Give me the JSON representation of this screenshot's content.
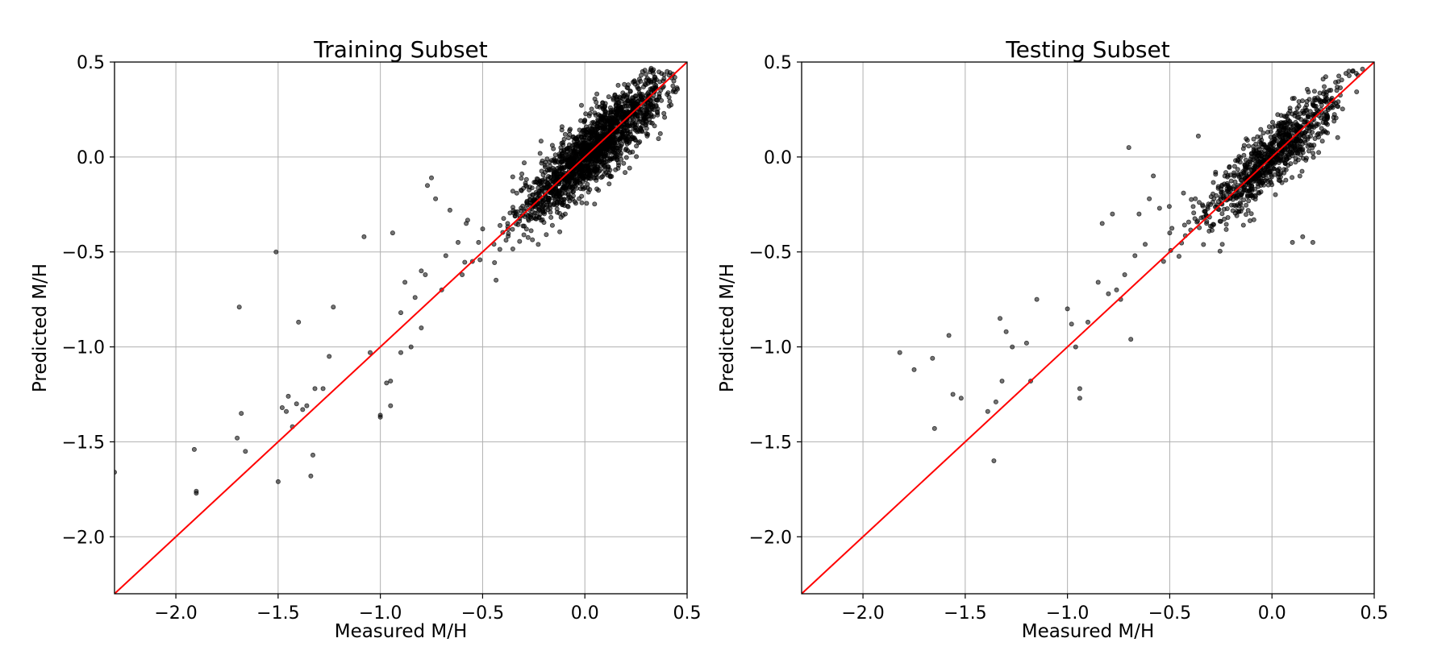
{
  "colors": {
    "background": "#ffffff",
    "points": "#000000",
    "identity_line": "#ff0000",
    "grid": "#b0b0b0",
    "axes": "#000000"
  },
  "chart_data": [
    {
      "type": "scatter",
      "title": "Training Subset",
      "xlabel": "Measured M/H",
      "ylabel": "Predicted M/H",
      "xlim": [
        -2.3,
        0.5
      ],
      "ylim": [
        -2.3,
        0.5
      ],
      "xticks": [
        -2.0,
        -1.5,
        -1.0,
        -0.5,
        0.0,
        0.5
      ],
      "yticks": [
        -2.0,
        -1.5,
        -1.0,
        -0.5,
        0.0,
        0.5
      ],
      "xtick_labels": [
        "−2.0",
        "−1.5",
        "−1.0",
        "−0.5",
        "0.0",
        "0.5"
      ],
      "ytick_labels": [
        "−2.0",
        "−1.5",
        "−1.0",
        "−0.5",
        "0.0",
        "0.5"
      ],
      "grid": true,
      "reference_line": {
        "slope": 1,
        "intercept": 0
      },
      "point_cloud": {
        "center_x": 0.05,
        "center_y": 0.05,
        "spread_along": 0.18,
        "spread_across": 0.07,
        "count": 1800
      },
      "sparse_points": {
        "x": [
          -2.3,
          -1.9,
          -1.9,
          -1.91,
          -1.7,
          -1.68,
          -1.66,
          -1.69,
          -1.51,
          -1.5,
          -1.48,
          -1.46,
          -1.45,
          -1.43,
          -1.41,
          -1.4,
          -1.38,
          -1.36,
          -1.34,
          -1.33,
          -1.32,
          -1.28,
          -1.25,
          -1.23,
          -1.08,
          -1.05,
          -1.0,
          -1.0,
          -0.97,
          -0.95,
          -0.95,
          -0.94,
          -0.9,
          -0.9,
          -0.88,
          -0.85,
          -0.83,
          -0.8,
          -0.8,
          -0.78,
          -0.77,
          -0.75,
          -0.73,
          -0.7,
          -0.68,
          -0.66,
          -0.62,
          -0.6,
          -0.58,
          -0.55,
          -0.52
        ],
        "y": [
          -1.66,
          -1.76,
          -1.77,
          -1.54,
          -1.48,
          -1.35,
          -1.55,
          -0.79,
          -0.5,
          -1.71,
          -1.32,
          -1.34,
          -1.26,
          -1.42,
          -1.3,
          -0.87,
          -1.33,
          -1.31,
          -1.68,
          -1.57,
          -1.22,
          -1.22,
          -1.05,
          -0.79,
          -0.42,
          -1.03,
          -1.37,
          -1.36,
          -1.19,
          -1.18,
          -1.31,
          -0.4,
          -1.03,
          -0.82,
          -0.66,
          -1.0,
          -0.74,
          -0.6,
          -0.9,
          -0.62,
          -0.15,
          -0.11,
          -0.22,
          -0.7,
          -0.52,
          -0.28,
          -0.45,
          -0.62,
          -0.35,
          -0.55,
          -0.45
        ]
      }
    },
    {
      "type": "scatter",
      "title": "Testing Subset",
      "xlabel": "Measured M/H",
      "ylabel": "Predicted M/H",
      "xlim": [
        -2.3,
        0.5
      ],
      "ylim": [
        -2.3,
        0.5
      ],
      "xticks": [
        -2.0,
        -1.5,
        -1.0,
        -0.5,
        0.0,
        0.5
      ],
      "yticks": [
        -2.0,
        -1.5,
        -1.0,
        -0.5,
        0.0,
        0.5
      ],
      "xtick_labels": [
        "−2.0",
        "−1.5",
        "−1.0",
        "−0.5",
        "0.0",
        "0.5"
      ],
      "ytick_labels": [
        "−2.0",
        "−1.5",
        "−1.0",
        "−0.5",
        "0.0",
        "0.5"
      ],
      "grid": true,
      "reference_line": {
        "slope": 1,
        "intercept": 0
      },
      "point_cloud": {
        "center_x": 0.0,
        "center_y": 0.0,
        "spread_along": 0.17,
        "spread_across": 0.065,
        "count": 900
      },
      "sparse_points": {
        "x": [
          -1.82,
          -1.75,
          -1.66,
          -1.65,
          -1.58,
          -1.56,
          -1.52,
          -1.39,
          -1.36,
          -1.35,
          -1.33,
          -1.32,
          -1.3,
          -1.27,
          -1.2,
          -1.18,
          -1.15,
          -1.0,
          -0.98,
          -0.96,
          -0.94,
          -0.94,
          -0.9,
          -0.85,
          -0.83,
          -0.8,
          -0.78,
          -0.76,
          -0.74,
          -0.72,
          -0.7,
          -0.69,
          -0.67,
          -0.65,
          -0.62,
          -0.6,
          -0.58,
          -0.55,
          -0.53,
          -0.5,
          -0.36,
          0.1,
          0.15,
          0.2
        ],
        "y": [
          -1.03,
          -1.12,
          -1.06,
          -1.43,
          -0.94,
          -1.25,
          -1.27,
          -1.34,
          -1.6,
          -1.29,
          -0.85,
          -1.18,
          -0.92,
          -1.0,
          -0.98,
          -1.18,
          -0.75,
          -0.8,
          -0.88,
          -1.0,
          -1.22,
          -1.27,
          -0.87,
          -0.66,
          -0.35,
          -0.72,
          -0.3,
          -0.7,
          -0.75,
          -0.62,
          0.05,
          -0.96,
          -0.52,
          -0.3,
          -0.46,
          -0.22,
          -0.1,
          -0.27,
          -0.55,
          -0.4,
          0.11,
          -0.45,
          -0.42,
          -0.45
        ]
      }
    }
  ]
}
